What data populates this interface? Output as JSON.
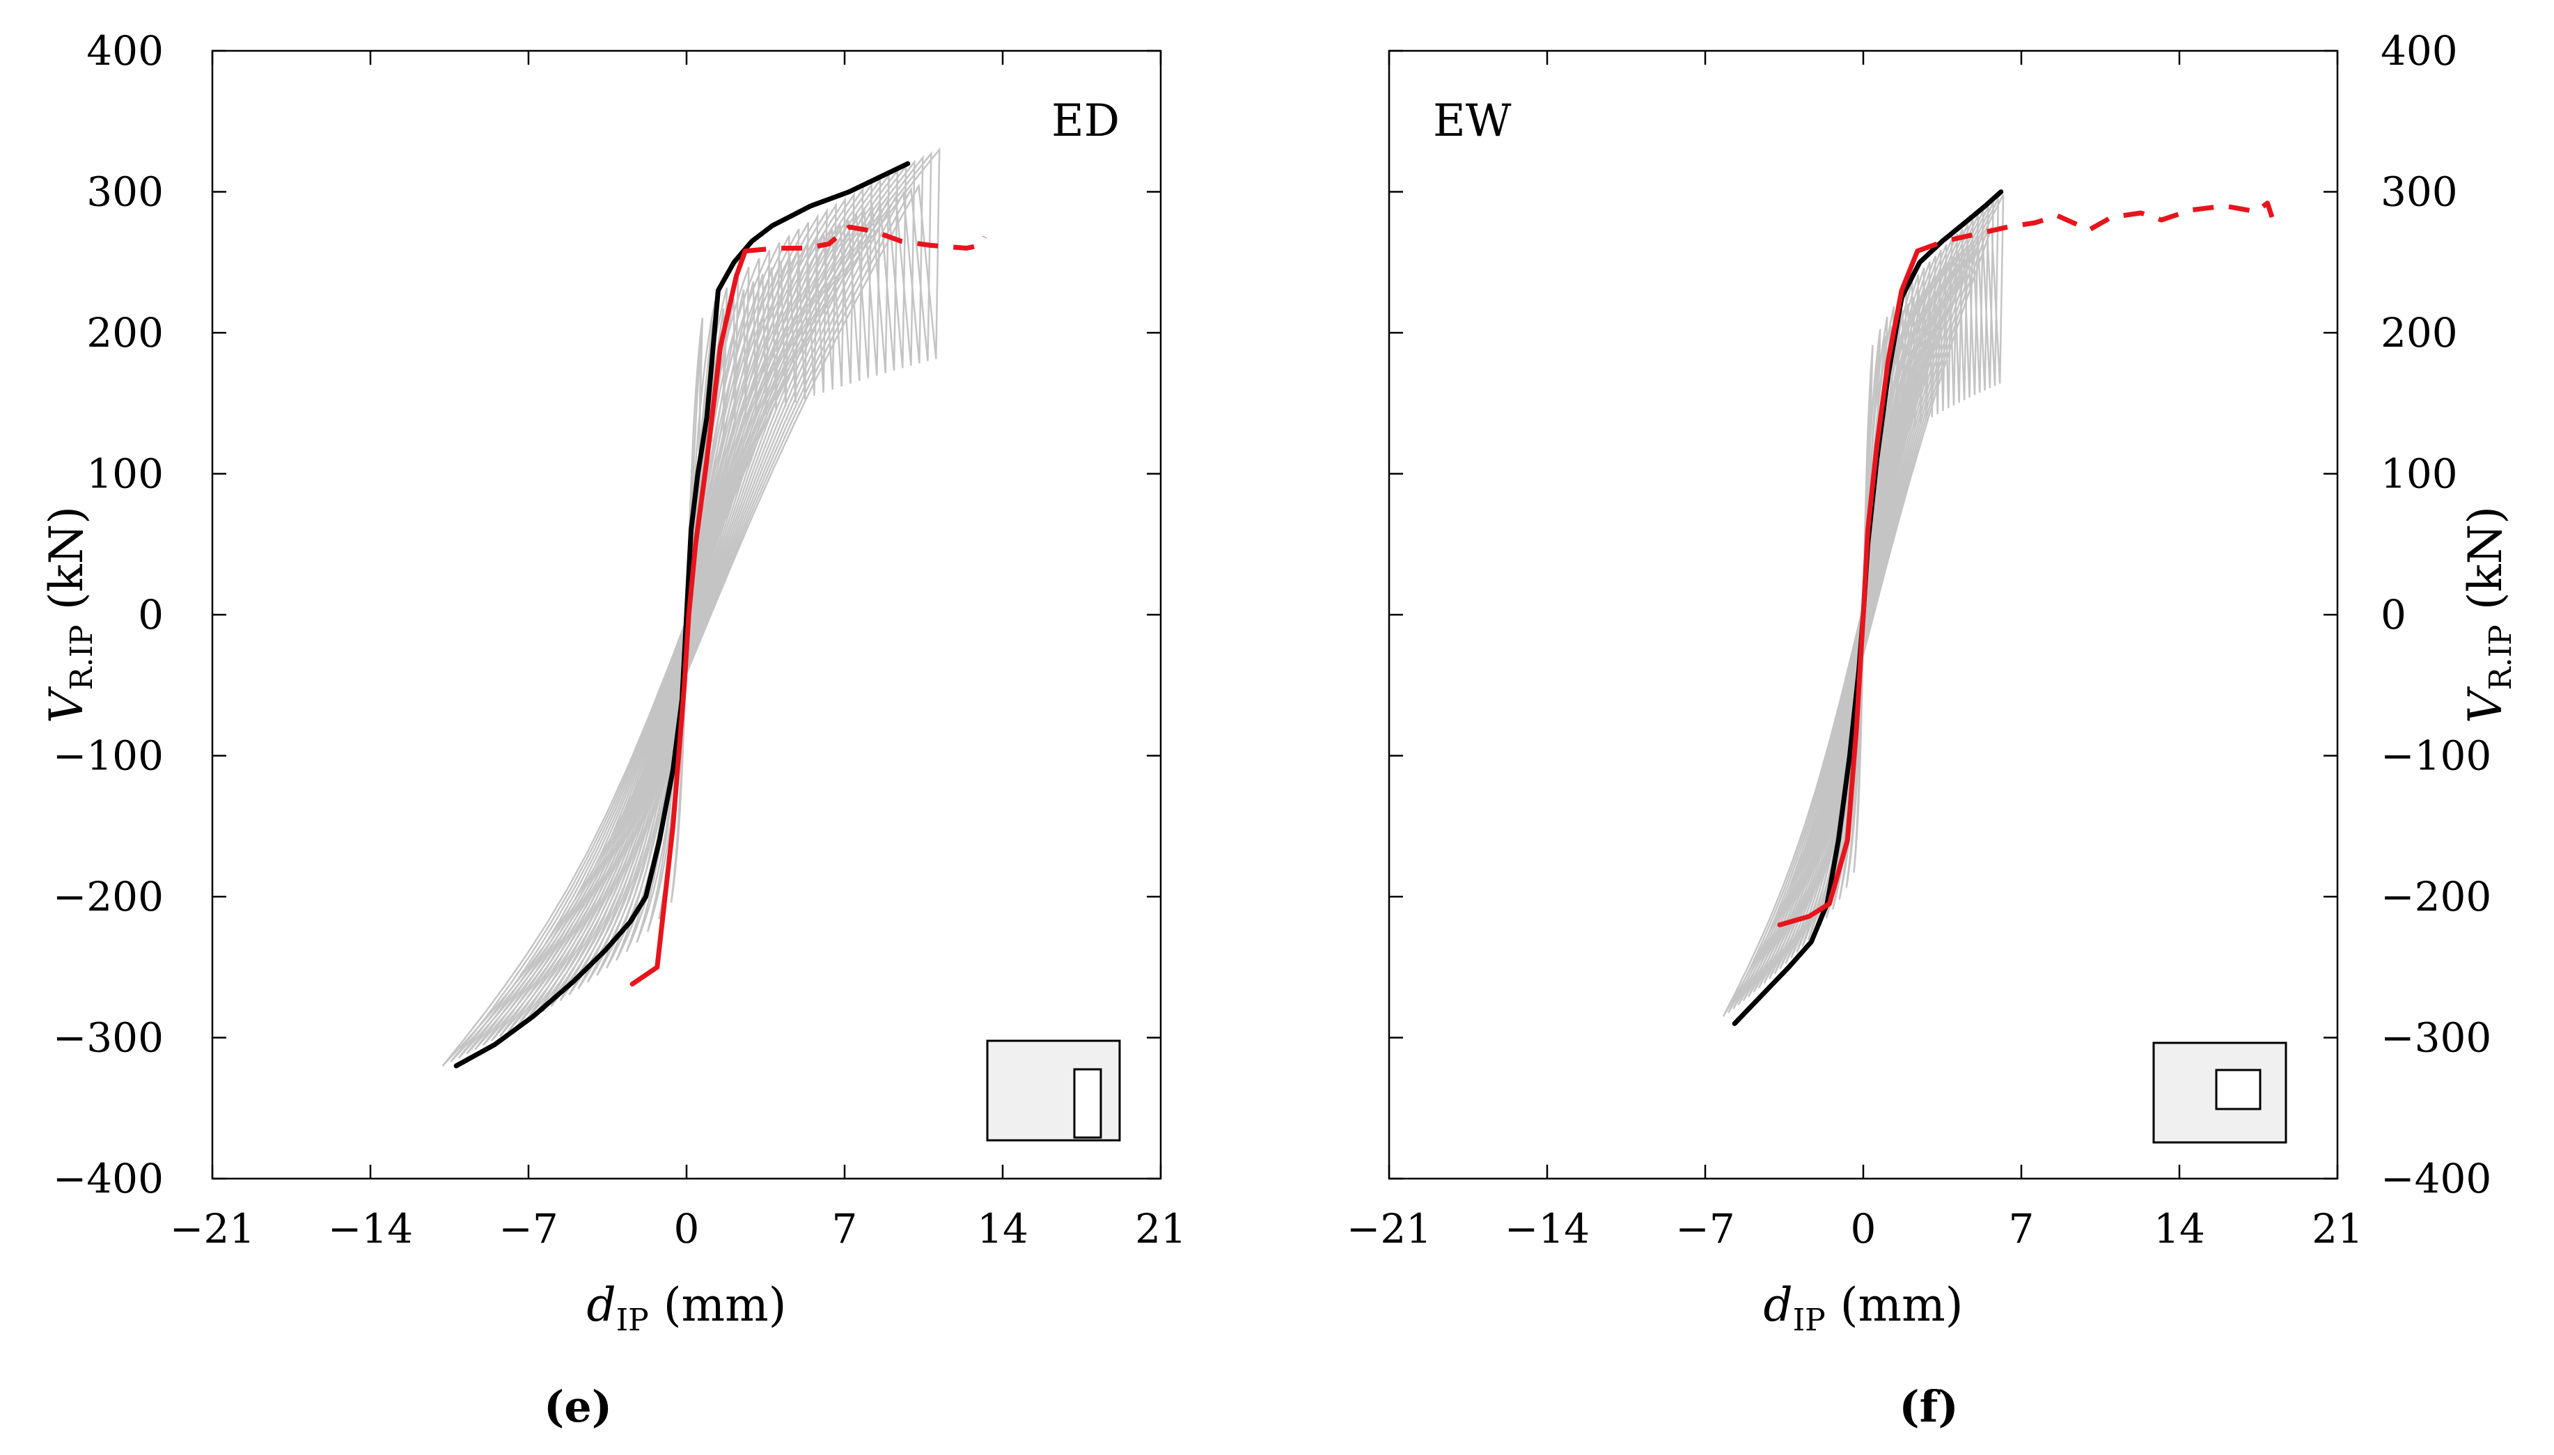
{
  "chart_data": [
    {
      "type": "line",
      "panel_label": "ED",
      "caption": "(e)",
      "xlabel": {
        "main": "d",
        "sub": "IP",
        "unit": " (mm)"
      },
      "ylabel": {
        "main": "V",
        "sub": "R.IP",
        "unit": " (kN)"
      },
      "xlim": [
        -21,
        21
      ],
      "ylim": [
        -400,
        400
      ],
      "xticks": [
        -21,
        -14,
        -7,
        0,
        7,
        14,
        21
      ],
      "yticks": [
        -400,
        -300,
        -200,
        -100,
        0,
        100,
        200,
        300,
        400
      ],
      "y_axis_side": "left",
      "grid": false,
      "colors": {
        "envelope": "#000000",
        "model": "#e8141c",
        "cycles": "#c4c4c4",
        "inset_fill": "#f0f0f0"
      },
      "inset": {
        "opening": "tall-narrow"
      },
      "hysteresis": {
        "pos_max_x": 11.2,
        "pos_max_y": 330,
        "neg_min_x": -10.8,
        "neg_min_y": -320,
        "n_cycles": 26
      },
      "series": [
        {
          "style": "black-solid",
          "x": [
            -10.2,
            -8.5,
            -6.8,
            -5,
            -3.6,
            -2.5,
            -1.8,
            -1.2,
            -0.6,
            -0.2,
            0,
            0.2,
            0.5,
            0.9,
            1.4,
            2.1,
            2.9,
            3.8,
            5.5,
            7.2,
            8.5,
            9.8
          ],
          "y": [
            -320,
            -305,
            -285,
            -260,
            -238,
            -218,
            -200,
            -160,
            -110,
            -60,
            0,
            60,
            100,
            140,
            230,
            250,
            265,
            276,
            290,
            300,
            310,
            320
          ]
        },
        {
          "style": "red-solid",
          "x": [
            -2.4,
            -1.3,
            -0.6,
            -0.1,
            0.1,
            0.4,
            0.9,
            1.5,
            2.2,
            2.6
          ],
          "y": [
            -262,
            -250,
            -150,
            -50,
            0,
            50,
            110,
            190,
            240,
            258
          ]
        },
        {
          "style": "red-dashed",
          "x": [
            2.6,
            4,
            5.3,
            6.3,
            7.2,
            8.3,
            9.5,
            10.8,
            12.4,
            13.0,
            13.2
          ],
          "y": [
            258,
            260,
            260,
            263,
            275,
            272,
            265,
            262,
            260,
            262,
            268
          ]
        }
      ]
    },
    {
      "type": "line",
      "panel_label": "EW",
      "caption": "(f)",
      "xlabel": {
        "main": "d",
        "sub": "IP",
        "unit": " (mm)"
      },
      "ylabel": {
        "main": "V",
        "sub": "R.IP",
        "unit": " (kN)"
      },
      "xlim": [
        -21,
        21
      ],
      "ylim": [
        -400,
        400
      ],
      "xticks": [
        -21,
        -14,
        -7,
        0,
        7,
        14,
        21
      ],
      "yticks": [
        -400,
        -300,
        -200,
        -100,
        0,
        100,
        200,
        300,
        400
      ],
      "y_axis_side": "right",
      "grid": false,
      "colors": {
        "envelope": "#000000",
        "model": "#e8141c",
        "cycles": "#c4c4c4",
        "inset_fill": "#f0f0f0"
      },
      "inset": {
        "opening": "small-square"
      },
      "hysteresis": {
        "pos_max_x": 6.2,
        "pos_max_y": 298,
        "neg_min_x": -6.2,
        "neg_min_y": -285,
        "n_cycles": 24
      },
      "series": [
        {
          "style": "black-solid",
          "x": [
            -5.7,
            -4.5,
            -3.3,
            -2.3,
            -1.6,
            -1.1,
            -0.6,
            -0.2,
            0,
            0.2,
            0.6,
            1.1,
            1.7,
            2.5,
            3.5,
            4.5,
            5.4,
            6.1
          ],
          "y": [
            -290,
            -270,
            -250,
            -232,
            -205,
            -160,
            -100,
            -40,
            0,
            50,
            110,
            170,
            225,
            250,
            265,
            278,
            290,
            300
          ]
        },
        {
          "style": "red-solid",
          "x": [
            -3.7,
            -2.4,
            -1.5,
            -0.7,
            -0.3,
            0,
            0.2,
            0.6,
            1.1,
            1.7,
            2.4
          ],
          "y": [
            -220,
            -214,
            -205,
            -160,
            -80,
            0,
            60,
            120,
            180,
            230,
            258
          ]
        },
        {
          "style": "red-dashed",
          "x": [
            2.4,
            3.6,
            5,
            6.4,
            7.6,
            8.6,
            10,
            11,
            12.3,
            13.2,
            14.5,
            16,
            17.4,
            17.9,
            18.1
          ],
          "y": [
            258,
            265,
            270,
            275,
            278,
            283,
            273,
            282,
            285,
            280,
            287,
            290,
            286,
            292,
            282
          ]
        }
      ]
    }
  ]
}
